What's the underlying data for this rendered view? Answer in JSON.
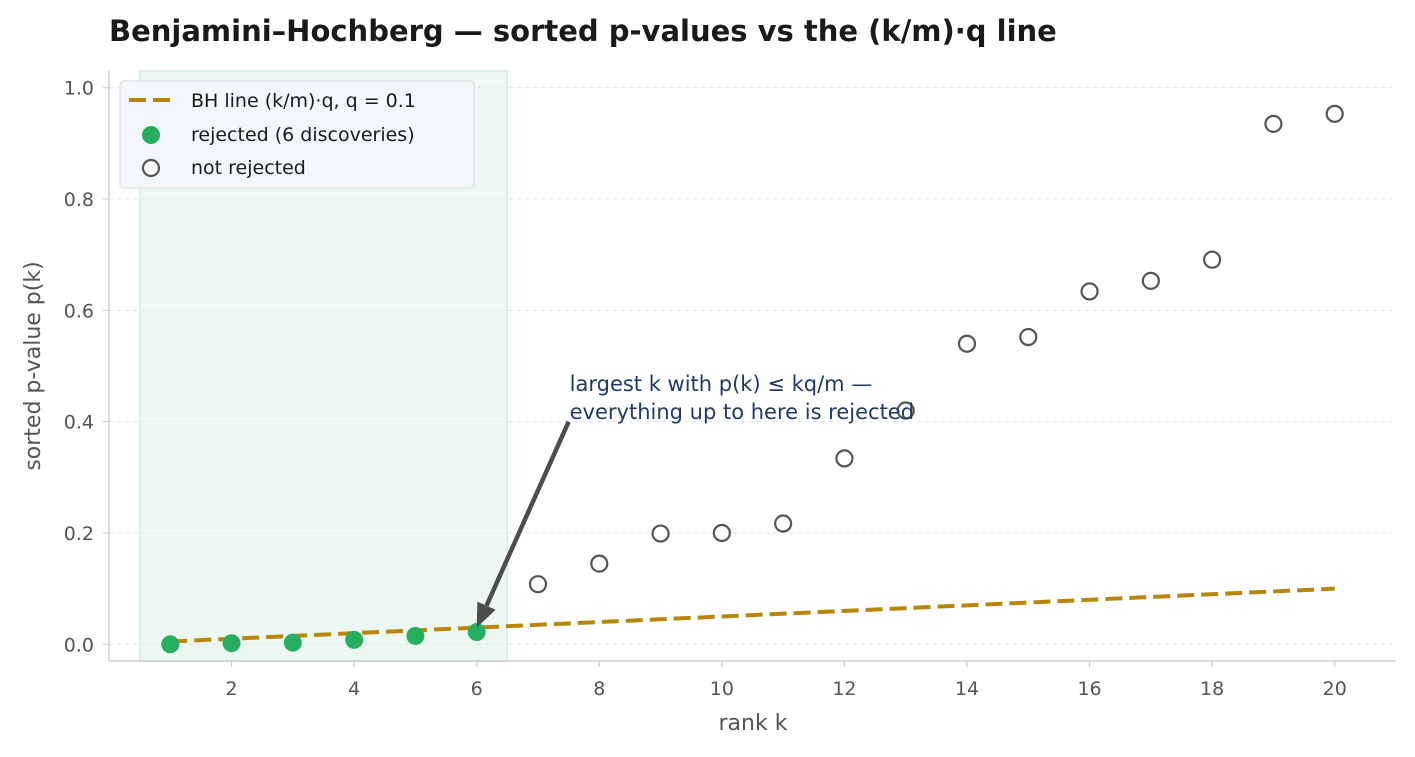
{
  "chart_data": {
    "type": "scatter",
    "title": "Benjamini–Hochberg — sorted p-values vs the (k/m)·q line",
    "xlabel": "rank k",
    "ylabel": "sorted p-value p(k)",
    "xlim": [
      0.0,
      21.0
    ],
    "ylim": [
      -0.03,
      1.03
    ],
    "xticks": [
      2,
      4,
      6,
      8,
      10,
      12,
      14,
      16,
      18,
      20
    ],
    "yticks": [
      0.0,
      0.2,
      0.4,
      0.6,
      0.8,
      1.0
    ],
    "grid": "horizontal, dashed",
    "legend_position": "top-left",
    "q": 0.1,
    "m": 20,
    "shaded_region": {
      "x": [
        0.5,
        6.5
      ],
      "color": "#e6f5ec"
    },
    "series": [
      {
        "name": "BH line  (k/m)·q,  q = 0.1",
        "kind": "dashed-line",
        "color": "#b8860b",
        "x": [
          1,
          20
        ],
        "y": [
          0.005,
          0.1
        ]
      },
      {
        "name": "rejected (6 discoveries)",
        "kind": "filled-marker",
        "color": "#27ae60",
        "x": [
          1,
          2,
          3,
          4,
          5,
          6
        ],
        "y": [
          0.0,
          0.002,
          0.003,
          0.008,
          0.015,
          0.022
        ]
      },
      {
        "name": "not rejected",
        "kind": "hollow-marker",
        "color": "#555555",
        "x": [
          7,
          8,
          9,
          10,
          11,
          12,
          13,
          14,
          15,
          16,
          17,
          18,
          19,
          20
        ],
        "y": [
          0.108,
          0.145,
          0.199,
          0.2,
          0.217,
          0.334,
          0.42,
          0.54,
          0.552,
          0.634,
          0.653,
          0.691,
          0.935,
          0.953
        ]
      }
    ],
    "annotation": {
      "lines": [
        "largest k with p(k) ≤ kq/m —",
        "everything up to here is rejected"
      ],
      "text_at": [
        7.5,
        0.48
      ],
      "arrow_from": [
        7.5,
        0.4
      ],
      "arrow_to": [
        6.0,
        0.03
      ],
      "color": "#1f3b66"
    }
  }
}
